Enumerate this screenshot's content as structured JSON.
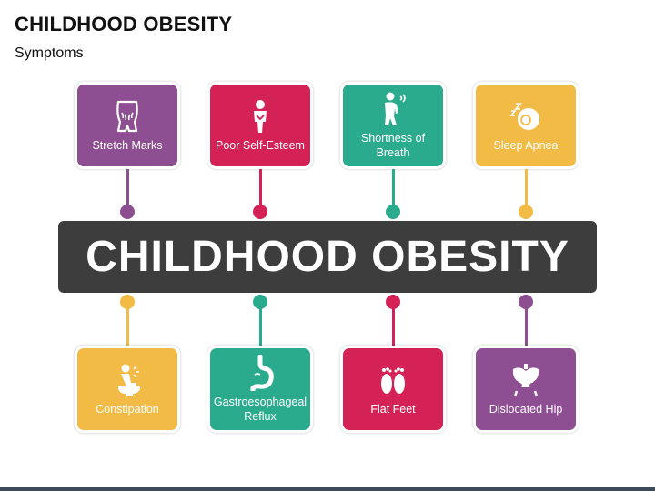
{
  "header": {
    "title": "CHILDHOOD OBESITY",
    "subtitle": "Symptoms"
  },
  "banner": {
    "text": "CHILDHOOD OBESITY"
  },
  "colors": {
    "purple": "#8e4f92",
    "crimson": "#d42256",
    "teal": "#2bab8e",
    "yellow": "#f2bb45",
    "dark": "#3d3d3d"
  },
  "top_symptoms": [
    {
      "label": "Stretch Marks",
      "icon": "torso-stretch-marks-icon",
      "color": "#8e4f92"
    },
    {
      "label": "Poor Self-Esteem",
      "icon": "sad-person-icon",
      "color": "#d42256"
    },
    {
      "label": "Shortness of Breath",
      "icon": "breathless-person-icon",
      "color": "#2bab8e"
    },
    {
      "label": "Sleep Apnea",
      "icon": "sleeping-face-icon",
      "color": "#f2bb45"
    }
  ],
  "bottom_symptoms": [
    {
      "label": "Constipation",
      "icon": "person-on-toilet-icon",
      "color": "#f2bb45"
    },
    {
      "label": "Gastroesophageal Reflux",
      "icon": "stomach-icon",
      "color": "#2bab8e"
    },
    {
      "label": "Flat Feet",
      "icon": "footprints-icon",
      "color": "#d42256"
    },
    {
      "label": "Dislocated Hip",
      "icon": "pelvis-icon",
      "color": "#8e4f92"
    }
  ]
}
